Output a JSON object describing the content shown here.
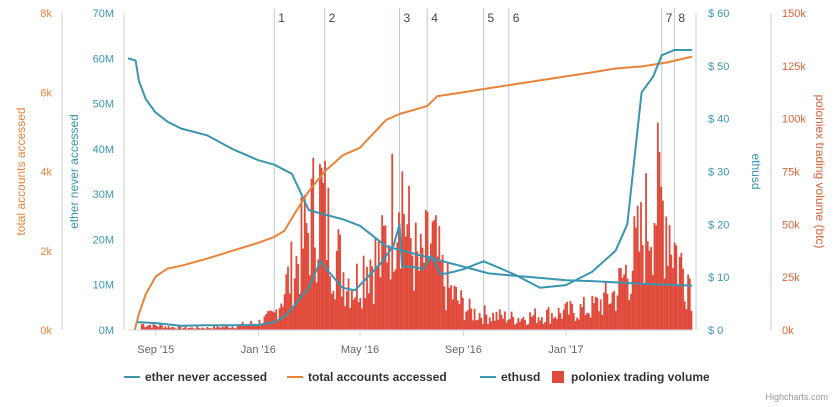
{
  "chart_data": {
    "type": "line",
    "x_range": [
      "2015-07-30",
      "2017-05-31"
    ],
    "x_ticks": [
      "Sep '15",
      "Jan '16",
      "May '16",
      "Sep '16",
      "Jan '17"
    ],
    "axes": {
      "total_accounts": {
        "title": "total accounts accessed",
        "range": [
          0,
          8000
        ],
        "ticks": [
          "0k",
          "2k",
          "4k",
          "6k",
          "8k"
        ],
        "color": "#e8833a"
      },
      "ether_never": {
        "title": "ether never accessed",
        "range": [
          0,
          70000000
        ],
        "ticks": [
          "0M",
          "10M",
          "20M",
          "30M",
          "40M",
          "50M",
          "60M",
          "70M"
        ],
        "color": "#3a96b0"
      },
      "ethusd": {
        "title": "ethusd",
        "range": [
          0,
          60
        ],
        "ticks": [
          "$ 0",
          "$ 10",
          "$ 20",
          "$ 30",
          "$ 40",
          "$ 50",
          "$ 60"
        ],
        "color": "#3a96b0"
      },
      "volume": {
        "title": "poloniex trading volume (btc)",
        "range": [
          0,
          150000
        ],
        "ticks": [
          "0k",
          "25k",
          "50k",
          "75k",
          "100k",
          "125k",
          "150k"
        ],
        "color": "#d9643a"
      }
    },
    "events": [
      {
        "label": "1",
        "date": "2016-01-20"
      },
      {
        "label": "2",
        "date": "2016-03-20"
      },
      {
        "label": "3",
        "date": "2016-06-17"
      },
      {
        "label": "4",
        "date": "2016-07-20"
      },
      {
        "label": "5",
        "date": "2016-09-25"
      },
      {
        "label": "6",
        "date": "2016-10-25"
      },
      {
        "label": "7",
        "date": "2017-04-25"
      },
      {
        "label": "8",
        "date": "2017-05-10"
      }
    ],
    "series": [
      {
        "name": "ether never accessed",
        "axis": "ether_never",
        "color": "#3a96b0",
        "points": [
          [
            "2015-07-30",
            60000000
          ],
          [
            "2015-08-08",
            59500000
          ],
          [
            "2015-08-12",
            55000000
          ],
          [
            "2015-08-20",
            51000000
          ],
          [
            "2015-09-01",
            48000000
          ],
          [
            "2015-09-15",
            46000000
          ],
          [
            "2015-10-01",
            44500000
          ],
          [
            "2015-11-01",
            43000000
          ],
          [
            "2015-12-01",
            40000000
          ],
          [
            "2016-01-01",
            37500000
          ],
          [
            "2016-01-20",
            36500000
          ],
          [
            "2016-02-10",
            34500000
          ],
          [
            "2016-03-01",
            26500000
          ],
          [
            "2016-03-20",
            25500000
          ],
          [
            "2016-04-10",
            24500000
          ],
          [
            "2016-05-01",
            23000000
          ],
          [
            "2016-06-01",
            18500000
          ],
          [
            "2016-07-01",
            17000000
          ],
          [
            "2016-08-01",
            15500000
          ],
          [
            "2016-09-01",
            14000000
          ],
          [
            "2016-10-01",
            12500000
          ],
          [
            "2016-11-01",
            12000000
          ],
          [
            "2016-12-01",
            11500000
          ],
          [
            "2017-01-01",
            11000000
          ],
          [
            "2017-02-01",
            10800000
          ],
          [
            "2017-03-01",
            10500000
          ],
          [
            "2017-04-01",
            10200000
          ],
          [
            "2017-05-01",
            10000000
          ],
          [
            "2017-05-31",
            9800000
          ]
        ]
      },
      {
        "name": "total accounts accessed",
        "axis": "total_accounts",
        "color": "#e8833a",
        "points": [
          [
            "2015-08-07",
            0
          ],
          [
            "2015-08-12",
            400
          ],
          [
            "2015-08-20",
            900
          ],
          [
            "2015-09-01",
            1350
          ],
          [
            "2015-09-15",
            1550
          ],
          [
            "2015-10-01",
            1620
          ],
          [
            "2015-11-01",
            1800
          ],
          [
            "2015-12-01",
            2000
          ],
          [
            "2016-01-01",
            2200
          ],
          [
            "2016-01-20",
            2350
          ],
          [
            "2016-02-01",
            2500
          ],
          [
            "2016-02-15",
            3000
          ],
          [
            "2016-03-01",
            3500
          ],
          [
            "2016-03-20",
            4000
          ],
          [
            "2016-04-10",
            4400
          ],
          [
            "2016-05-01",
            4600
          ],
          [
            "2016-06-01",
            5300
          ],
          [
            "2016-06-17",
            5450
          ],
          [
            "2016-07-20",
            5650
          ],
          [
            "2016-08-01",
            5900
          ],
          [
            "2016-09-01",
            6000
          ],
          [
            "2016-10-01",
            6100
          ],
          [
            "2016-11-01",
            6200
          ],
          [
            "2016-12-01",
            6300
          ],
          [
            "2017-01-01",
            6400
          ],
          [
            "2017-02-01",
            6500
          ],
          [
            "2017-03-01",
            6600
          ],
          [
            "2017-04-01",
            6650
          ],
          [
            "2017-05-01",
            6750
          ],
          [
            "2017-05-31",
            6900
          ]
        ]
      },
      {
        "name": "ethusd",
        "axis": "ethusd",
        "color": "#3a96b0",
        "points": [
          [
            "2015-08-10",
            1.5
          ],
          [
            "2015-09-01",
            1.3
          ],
          [
            "2015-10-01",
            0.8
          ],
          [
            "2015-11-01",
            0.9
          ],
          [
            "2015-12-01",
            0.9
          ],
          [
            "2016-01-01",
            0.95
          ],
          [
            "2016-01-20",
            1.5
          ],
          [
            "2016-02-01",
            2.5
          ],
          [
            "2016-02-15",
            5.0
          ],
          [
            "2016-03-01",
            8.0
          ],
          [
            "2016-03-15",
            13.0
          ],
          [
            "2016-03-25",
            11.0
          ],
          [
            "2016-04-10",
            8.0
          ],
          [
            "2016-04-25",
            7.5
          ],
          [
            "2016-05-10",
            10.0
          ],
          [
            "2016-05-25",
            12.5
          ],
          [
            "2016-06-10",
            16.0
          ],
          [
            "2016-06-17",
            20.0
          ],
          [
            "2016-06-20",
            12.0
          ],
          [
            "2016-07-01",
            12.0
          ],
          [
            "2016-07-15",
            11.5
          ],
          [
            "2016-07-25",
            14.0
          ],
          [
            "2016-08-05",
            10.5
          ],
          [
            "2016-08-20",
            11.0
          ],
          [
            "2016-09-01",
            11.5
          ],
          [
            "2016-09-25",
            13.0
          ],
          [
            "2016-10-10",
            12.0
          ],
          [
            "2016-11-01",
            10.5
          ],
          [
            "2016-12-01",
            8.0
          ],
          [
            "2017-01-01",
            8.5
          ],
          [
            "2017-02-01",
            11.0
          ],
          [
            "2017-03-01",
            15.0
          ],
          [
            "2017-03-15",
            20.0
          ],
          [
            "2017-04-01",
            45.0
          ],
          [
            "2017-04-15",
            48.0
          ],
          [
            "2017-04-25",
            52.0
          ],
          [
            "2017-05-10",
            53.0
          ],
          [
            "2017-05-31",
            53.0
          ]
        ]
      },
      {
        "name": "poloniex trading volume",
        "axis": "volume",
        "color": "#e04a3a",
        "type": "column",
        "points": [
          [
            "2015-08-15",
            4000
          ],
          [
            "2015-09-01",
            3000
          ],
          [
            "2015-10-01",
            1500
          ],
          [
            "2015-11-01",
            1500
          ],
          [
            "2015-12-01",
            2500
          ],
          [
            "2016-01-01",
            5000
          ],
          [
            "2016-01-20",
            10000
          ],
          [
            "2016-02-01",
            28000
          ],
          [
            "2016-02-15",
            45000
          ],
          [
            "2016-03-01",
            70000
          ],
          [
            "2016-03-15",
            90000
          ],
          [
            "2016-03-25",
            65000
          ],
          [
            "2016-04-10",
            40000
          ],
          [
            "2016-04-25",
            30000
          ],
          [
            "2016-05-10",
            50000
          ],
          [
            "2016-05-25",
            45000
          ],
          [
            "2016-06-10",
            85000
          ],
          [
            "2016-06-17",
            110000
          ],
          [
            "2016-06-25",
            70000
          ],
          [
            "2016-07-10",
            40000
          ],
          [
            "2016-07-25",
            60000
          ],
          [
            "2016-08-10",
            30000
          ],
          [
            "2016-08-25",
            20000
          ],
          [
            "2016-09-10",
            12000
          ],
          [
            "2016-10-01",
            10000
          ],
          [
            "2016-11-01",
            8000
          ],
          [
            "2016-12-01",
            10000
          ],
          [
            "2017-01-01",
            12000
          ],
          [
            "2017-02-01",
            15000
          ],
          [
            "2017-03-01",
            25000
          ],
          [
            "2017-04-01",
            60000
          ],
          [
            "2017-04-15",
            90000
          ],
          [
            "2017-05-01",
            80000
          ],
          [
            "2017-05-15",
            45000
          ],
          [
            "2017-05-31",
            35000
          ]
        ]
      }
    ],
    "legend": {
      "position": "bottom",
      "items": [
        {
          "label": "ether never accessed",
          "color": "#3a96b0",
          "symbol": "line"
        },
        {
          "label": "total accounts accessed",
          "color": "#e8833a",
          "symbol": "line"
        },
        {
          "label": "ethusd",
          "color": "#3a96b0",
          "symbol": "line"
        },
        {
          "label": "poloniex trading volume",
          "color": "#e04a3a",
          "symbol": "box"
        }
      ]
    },
    "credits": "Highcharts.com"
  }
}
